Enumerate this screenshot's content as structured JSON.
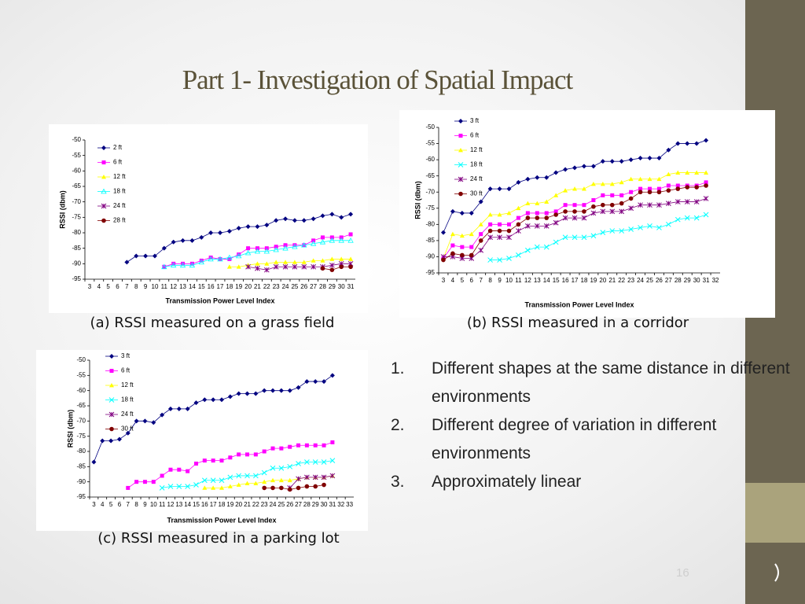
{
  "title": "Part 1- Investigation of Spatial Impact",
  "slide_number": "16",
  "list": [
    {
      "number": "1.",
      "text": "Different shapes at the same distance in different environments"
    },
    {
      "number": "2.",
      "text": "Different degree of variation in different environments"
    },
    {
      "number": "3.",
      "text": "Approximately linear"
    }
  ],
  "chart_data": [
    {
      "type": "line",
      "caption": "(a) RSSI measured on a grass field",
      "x_label": "Transmission Power Level Index",
      "y_label": "RSSI (dbm)",
      "categories": [
        3,
        4,
        5,
        6,
        7,
        8,
        9,
        10,
        11,
        12,
        13,
        14,
        15,
        16,
        17,
        18,
        19,
        20,
        21,
        22,
        23,
        24,
        25,
        26,
        27,
        28,
        29,
        30,
        31
      ],
      "ylim": [
        -95,
        -50
      ],
      "yticks": [
        -50,
        -55,
        -60,
        -65,
        -70,
        -75,
        -80,
        -85,
        -90,
        -95
      ],
      "series": [
        {
          "name": "2 ft",
          "color": "#000080",
          "marker": "diamond",
          "values": [
            null,
            null,
            null,
            null,
            -89.5,
            -87.5,
            -87.5,
            -87.5,
            -85,
            -83,
            -82.5,
            -82.5,
            -81.5,
            -80,
            -80,
            -79.5,
            -78.5,
            -78,
            -78,
            -77.5,
            -76,
            -75.5,
            -76,
            -76,
            -75.5,
            -74.5,
            -74,
            -75,
            -74
          ]
        },
        {
          "name": "6 ft",
          "color": "#ff00ff",
          "marker": "square",
          "values": [
            null,
            null,
            null,
            null,
            null,
            null,
            null,
            null,
            -91,
            -90,
            -90,
            -90,
            -89,
            -88,
            -88.5,
            -88.5,
            -87,
            -85,
            -85,
            -85,
            -84.5,
            -84,
            -84,
            -84,
            -82.5,
            -81.5,
            -81.5,
            -81.5,
            -80.5
          ]
        },
        {
          "name": "12 ft",
          "color": "#ffff00",
          "marker": "triangle",
          "values": [
            null,
            null,
            null,
            null,
            null,
            null,
            null,
            null,
            null,
            null,
            null,
            null,
            null,
            null,
            null,
            -91,
            -91,
            -90.5,
            -90,
            -90,
            -89.5,
            -89.5,
            -89.5,
            -89.5,
            -89,
            -89,
            -88.5,
            -88.5,
            -88.5
          ]
        },
        {
          "name": "18 ft",
          "color": "#00ffff",
          "marker": "triangle-open",
          "values": [
            null,
            null,
            null,
            null,
            null,
            null,
            null,
            null,
            -91,
            -90.5,
            -90.5,
            -90.5,
            -89.5,
            -88.5,
            -88.5,
            -88,
            -87.5,
            -86.5,
            -86,
            -86,
            -85.5,
            -85,
            -84.5,
            -84,
            -83.5,
            -83,
            -82.5,
            -82.5,
            -82.5
          ]
        },
        {
          "name": "24 ft",
          "color": "#800080",
          "marker": "star",
          "values": [
            null,
            null,
            null,
            null,
            null,
            null,
            null,
            null,
            null,
            null,
            null,
            null,
            null,
            null,
            null,
            null,
            null,
            -91,
            -91.5,
            -92,
            -91,
            -91,
            -91,
            -91,
            -91,
            -91,
            -90.5,
            -90,
            -90
          ]
        },
        {
          "name": "28 ft",
          "color": "#800000",
          "marker": "circle",
          "values": [
            null,
            null,
            null,
            null,
            null,
            null,
            null,
            null,
            null,
            null,
            null,
            null,
            null,
            null,
            null,
            null,
            null,
            null,
            null,
            null,
            null,
            null,
            null,
            null,
            null,
            -91.5,
            -92,
            -91,
            -91
          ]
        }
      ]
    },
    {
      "type": "line",
      "caption": "(b) RSSI measured in a corridor",
      "x_label": "Transmission Power Level Index",
      "y_label": "RSSI (dbm)",
      "categories": [
        3,
        4,
        5,
        6,
        7,
        8,
        9,
        10,
        11,
        12,
        13,
        14,
        15,
        16,
        17,
        18,
        19,
        20,
        21,
        22,
        23,
        24,
        25,
        26,
        27,
        28,
        29,
        30,
        31,
        32
      ],
      "ylim": [
        -95,
        -50
      ],
      "yticks": [
        -50,
        -55,
        -60,
        -65,
        -70,
        -75,
        -80,
        -85,
        -90,
        -95
      ],
      "series": [
        {
          "name": "3 ft",
          "color": "#000080",
          "marker": "diamond",
          "values": [
            -82.5,
            -76,
            -76.5,
            -76.5,
            -73,
            -69,
            -69,
            -69,
            -67,
            -66,
            -65.5,
            -65.5,
            -64,
            -63,
            -62.5,
            -62,
            -62,
            -60.5,
            -60.5,
            -60.5,
            -60,
            -59.5,
            -59.5,
            -59.5,
            -57,
            -55,
            -55,
            -55,
            -54,
            null
          ]
        },
        {
          "name": "6 ft",
          "color": "#ff00ff",
          "marker": "square",
          "values": [
            -90.5,
            -86.5,
            -87,
            -87,
            -83,
            -80,
            -80,
            -80,
            -78,
            -76.5,
            -76.5,
            -76.5,
            -76,
            -74,
            -74,
            -74,
            -72.5,
            -71,
            -71,
            -71,
            -70,
            -69,
            -69,
            -69,
            -68,
            -68,
            -68,
            -68,
            -67,
            null
          ]
        },
        {
          "name": "12 ft",
          "color": "#ffff00",
          "marker": "triangle",
          "values": [
            -90.5,
            -83,
            -83.5,
            -83,
            -80,
            -77,
            -77,
            -76.5,
            -75,
            -73.5,
            -73.5,
            -73,
            -71,
            -69.5,
            -69,
            -69,
            -67.5,
            -67.5,
            -67.5,
            -67,
            -66,
            -66,
            -66,
            -66,
            -64.5,
            -64,
            -64,
            -64,
            -64,
            null
          ]
        },
        {
          "name": "18 ft",
          "color": "#00ffff",
          "marker": "x",
          "values": [
            null,
            null,
            null,
            null,
            null,
            -91,
            -91,
            -90.5,
            -89.5,
            -88,
            -87,
            -87,
            -85.5,
            -84,
            -84,
            -84,
            -83.5,
            -82.5,
            -82,
            -82,
            -81.5,
            -81,
            -80.5,
            -81,
            -80,
            -78.5,
            -78,
            -78,
            -77,
            null
          ]
        },
        {
          "name": "24 ft",
          "color": "#800080",
          "marker": "star",
          "values": [
            -90,
            -90,
            -90.5,
            -90.5,
            -88,
            -84,
            -84,
            -84,
            -82,
            -80.5,
            -80.5,
            -80.5,
            -79.5,
            -78,
            -78,
            -78,
            -76.5,
            -76,
            -76,
            -76,
            -75,
            -74,
            -74,
            -74,
            -73.5,
            -73,
            -73,
            -73,
            -72,
            null
          ]
        },
        {
          "name": "30 ft",
          "color": "#800000",
          "marker": "circle",
          "values": [
            -91,
            -89,
            -89.5,
            -89.5,
            -85,
            -82,
            -82,
            -82,
            -80,
            -78,
            -78,
            -78,
            -77,
            -76,
            -76,
            -76,
            -74.5,
            -74,
            -74,
            -73.5,
            -72,
            -70,
            -70,
            -70,
            -69.5,
            -69,
            -68.5,
            -68.5,
            -68,
            null
          ]
        }
      ]
    },
    {
      "type": "line",
      "caption": "(c) RSSI measured in a parking lot",
      "x_label": "Transmission Power Level Index",
      "y_label": "RSSI (dbm)",
      "categories": [
        3,
        4,
        5,
        6,
        7,
        8,
        9,
        10,
        11,
        12,
        13,
        14,
        15,
        16,
        17,
        18,
        19,
        20,
        21,
        22,
        23,
        24,
        25,
        26,
        27,
        28,
        29,
        30,
        31,
        32,
        33
      ],
      "ylim": [
        -95,
        -50
      ],
      "yticks": [
        -50,
        -55,
        -60,
        -65,
        -70,
        -75,
        -80,
        -85,
        -90,
        -95
      ],
      "series": [
        {
          "name": "3 ft",
          "color": "#000080",
          "marker": "diamond",
          "values": [
            -83.5,
            -76.5,
            -76.5,
            -76,
            -74,
            -70,
            -70,
            -70.5,
            -68,
            -66,
            -66,
            -66,
            -64,
            -63,
            -63,
            -63,
            -62,
            -61,
            -61,
            -61,
            -60,
            -60,
            -60,
            -60,
            -59,
            -57,
            -57,
            -57,
            -55,
            null,
            null
          ]
        },
        {
          "name": "6 ft",
          "color": "#ff00ff",
          "marker": "square",
          "values": [
            null,
            null,
            null,
            null,
            -92,
            -90,
            -90,
            -90,
            -88,
            -86,
            -86,
            -86.5,
            -84,
            -83,
            -83,
            -83,
            -82,
            -81,
            -81,
            -81,
            -80,
            -79,
            -79,
            -78.5,
            -78,
            -78,
            -78,
            -78,
            -77,
            null,
            null
          ]
        },
        {
          "name": "12 ft",
          "color": "#ffff00",
          "marker": "triangle",
          "values": [
            null,
            null,
            null,
            null,
            null,
            null,
            null,
            null,
            null,
            null,
            null,
            null,
            null,
            -92,
            -92,
            -92,
            -91.5,
            -91,
            -90.5,
            -90.5,
            -90,
            -89.5,
            -89.5,
            -89.5,
            -89,
            -88.5,
            -88.5,
            -88.5,
            -88,
            null,
            null
          ]
        },
        {
          "name": "18 ft",
          "color": "#00ffff",
          "marker": "x",
          "values": [
            null,
            null,
            null,
            null,
            null,
            null,
            null,
            null,
            -92,
            -91.5,
            -91.5,
            -91.5,
            -91,
            -89.5,
            -89.5,
            -89.5,
            -88.5,
            -88,
            -88,
            -88,
            -87,
            -85.5,
            -85.5,
            -85,
            -84,
            -83.5,
            -83.5,
            -83.5,
            -83,
            null,
            null
          ]
        },
        {
          "name": "24 ft",
          "color": "#800080",
          "marker": "star",
          "values": [
            null,
            null,
            null,
            null,
            null,
            null,
            null,
            null,
            null,
            null,
            null,
            null,
            null,
            null,
            null,
            null,
            null,
            null,
            null,
            null,
            null,
            null,
            null,
            -92,
            -89,
            -88.5,
            -88.5,
            -88.5,
            -88,
            null,
            null
          ]
        },
        {
          "name": "30 ft",
          "color": "#800000",
          "marker": "circle",
          "values": [
            null,
            null,
            null,
            null,
            null,
            null,
            null,
            null,
            null,
            null,
            null,
            null,
            null,
            null,
            null,
            null,
            null,
            null,
            null,
            null,
            -92,
            -92,
            -92,
            -92.5,
            -92,
            -91.5,
            -91.5,
            -91,
            null,
            null,
            null
          ]
        }
      ]
    }
  ]
}
